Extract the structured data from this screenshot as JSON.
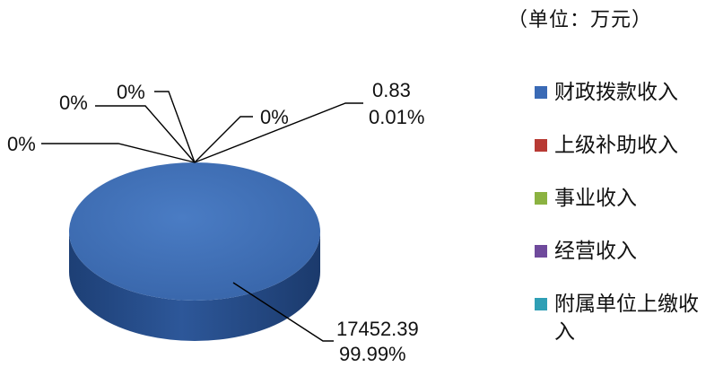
{
  "unit_label": "（单位：万元）",
  "chart_data": {
    "type": "pie",
    "style": "3d",
    "categories": [
      "财政拨款收入",
      "上级补助收入",
      "事业收入",
      "经营收入",
      "附属单位上缴收入"
    ],
    "values": [
      17452.39,
      0,
      0,
      0,
      0.83
    ],
    "data_labels": [
      {
        "value": "17452.39",
        "percent": "99.99%"
      },
      {
        "value": "",
        "percent": "0%"
      },
      {
        "value": "",
        "percent": "0%"
      },
      {
        "value": "",
        "percent": "0%"
      },
      {
        "value": "0.83",
        "percent": "0.01%"
      }
    ],
    "extra_label": "0%",
    "legend": {
      "position": "right",
      "entries": [
        {
          "label": "财政拨款收入",
          "color": "#3a6ab5"
        },
        {
          "label": "上级补助收入",
          "color": "#b83a34"
        },
        {
          "label": "事业收入",
          "color": "#8bb241"
        },
        {
          "label": "经营收入",
          "color": "#6f4a9c"
        },
        {
          "label": "附属单位上缴收入",
          "color": "#2f9fb5"
        }
      ]
    }
  }
}
